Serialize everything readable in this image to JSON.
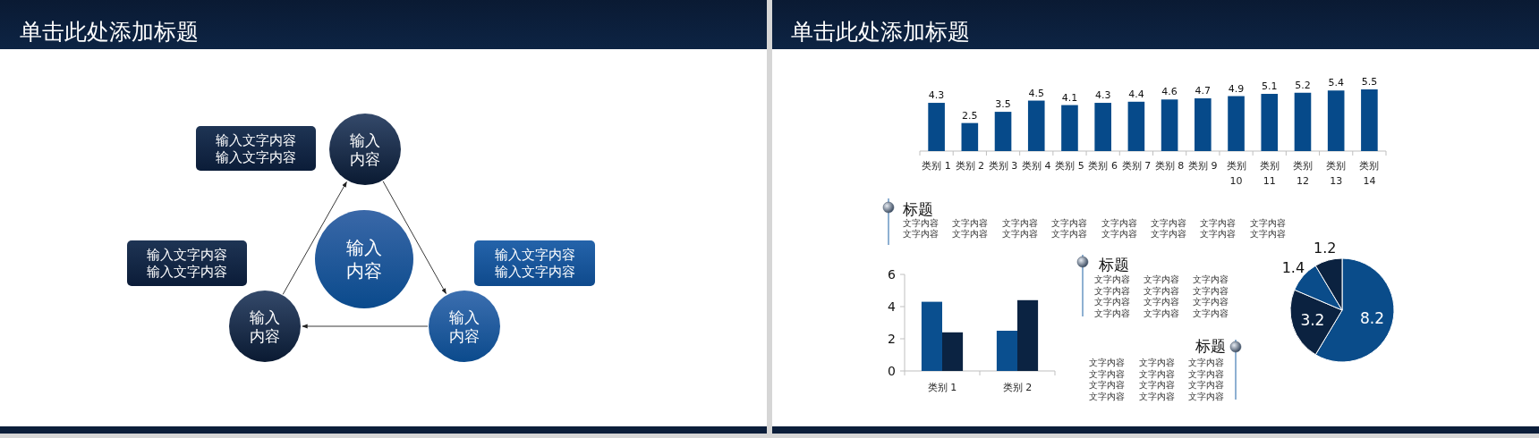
{
  "chart_data": [
    {
      "type": "other",
      "title": "单击此处添加标题",
      "annotations": [
        "输入内容",
        "输入内容",
        "输入内容",
        "输入内容",
        "输入文字内容输入文字内容",
        "输入文字内容输入文字内容",
        "输入文字内容输入文字内容"
      ]
    },
    {
      "type": "other",
      "title": "单击此处添加标题"
    },
    {
      "type": "bar",
      "categories": [
        "类别 1",
        "类别 2",
        "类别 3",
        "类别 4",
        "类别 5",
        "类别 6",
        "类别 7",
        "类别 8",
        "类别 9",
        "类别 10",
        "类别 11",
        "类别 12",
        "类别 13",
        "类别 14"
      ],
      "values": [
        4.3,
        2.5,
        3.5,
        4.5,
        4.1,
        4.3,
        4.4,
        4.6,
        4.7,
        4.9,
        5.1,
        5.2,
        5.4,
        5.5
      ],
      "color": "#064a8a",
      "data_labels": true
    },
    {
      "type": "other",
      "title": "标题",
      "annotations": [
        "文字内容",
        "文字内容",
        "文字内容",
        "文字内容",
        "文字内容",
        "文字内容",
        "文字内容",
        "文字内容",
        "文字内容",
        "文字内容",
        "文字内容",
        "文字内容",
        "文字内容",
        "文字内容",
        "文字内容",
        "文字内容"
      ]
    },
    {
      "type": "bar",
      "categories": [
        "类别 1",
        "类别 2"
      ],
      "series": [
        {
          "color": "#0a4f8f",
          "values": [
            4.3,
            2.5
          ]
        },
        {
          "color": "#0b2342",
          "values": [
            2.4,
            4.4
          ]
        }
      ],
      "ylim": [
        0,
        6
      ],
      "yticks": [
        0,
        2,
        4,
        6
      ]
    },
    {
      "type": "other",
      "title": "标题",
      "annotations": [
        "文字内容",
        "文字内容",
        "文字内容",
        "文字内容",
        "文字内容",
        "文字内容",
        "文字内容",
        "文字内容",
        "文字内容",
        "文字内容",
        "文字内容",
        "文字内容"
      ]
    },
    {
      "type": "pie",
      "categories": [
        null,
        null,
        null,
        null
      ],
      "values": [
        8.2,
        3.2,
        1.4,
        1.2
      ],
      "colors": [
        "#0a4c8a",
        "#0b2240",
        "#0a4c8a",
        "#0b2240"
      ],
      "data_labels": true
    },
    {
      "type": "other",
      "title": "标题",
      "annotations": [
        "文字内容",
        "文字内容",
        "文字内容",
        "文字内容",
        "文字内容",
        "文字内容",
        "文字内容",
        "文字内容",
        "文字内容",
        "文字内容",
        "文字内容",
        "文字内容"
      ]
    }
  ]
}
